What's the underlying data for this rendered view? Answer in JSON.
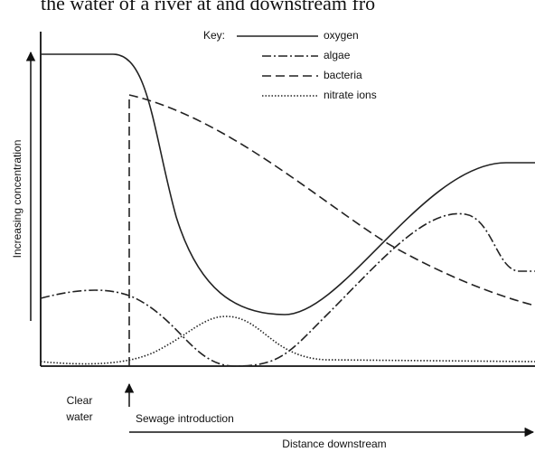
{
  "header": {
    "title": "the water of a river at and downstream fro"
  },
  "key": {
    "label": "Key:",
    "items": [
      "oxygen",
      "algae",
      "bacteria",
      "nitrate ions"
    ]
  },
  "axes": {
    "y_label": "Increasing concentration",
    "x_label": "Distance downstream"
  },
  "labels": {
    "clear_water": [
      "Clear",
      "water"
    ],
    "sewage": "Sewage introduction"
  }
}
